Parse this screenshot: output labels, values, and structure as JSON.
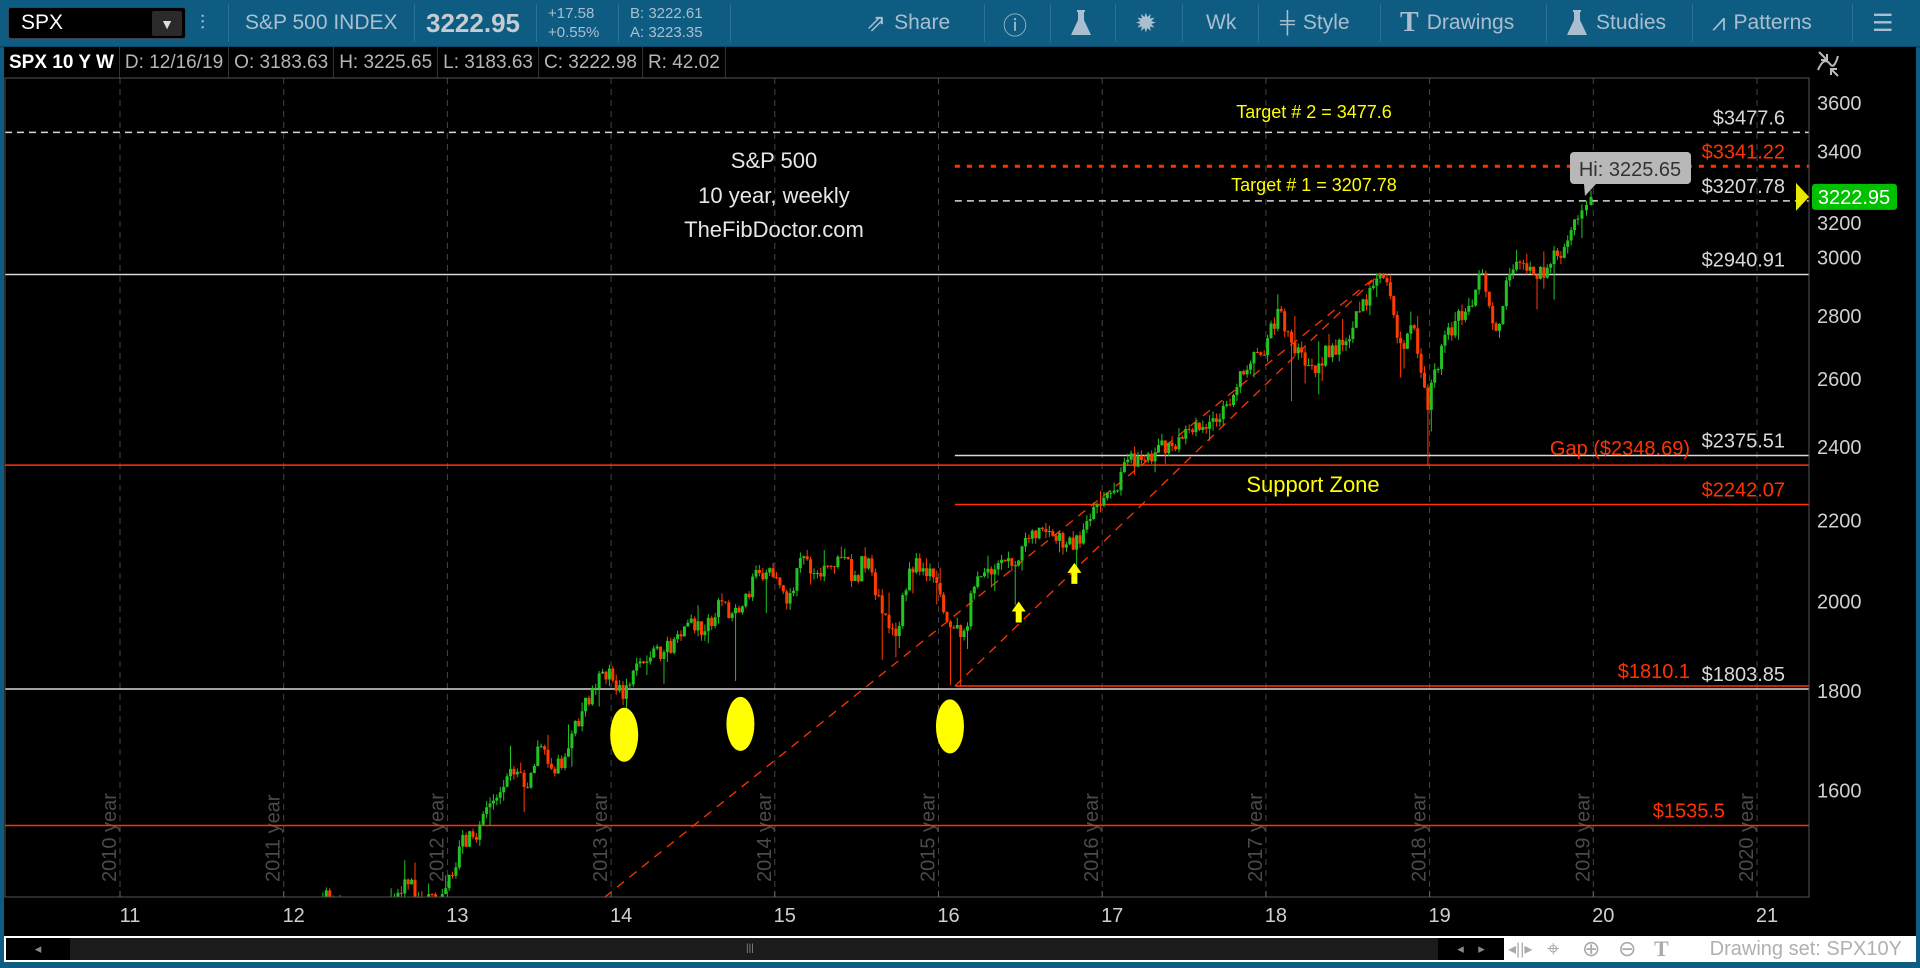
{
  "toolbar": {
    "symbol": "SPX",
    "name": "S&P 500 INDEX",
    "last": "3222.95",
    "change": "+17.58",
    "change_pct": "+0.55%",
    "bid": "B: 3222.61",
    "ask": "A: 3223.35",
    "share": "Share",
    "timeframe": "Wk",
    "style": "Style",
    "drawings": "Drawings",
    "studies": "Studies",
    "patterns": "Patterns"
  },
  "infobar": {
    "title": "SPX 10 Y W",
    "date": "D: 12/16/19",
    "open": "O: 3183.63",
    "high": "H: 3225.65",
    "low": "L: 3183.63",
    "close": "C: 3222.98",
    "range": "R: 42.02"
  },
  "annotations": {
    "title_lines": [
      "S&P 500",
      "10 year, weekly",
      "TheFibDoctor.com"
    ],
    "target2": "Target # 2 = 3477.6",
    "target1": "Target # 1 = 3207.78",
    "support_zone": "Support  Zone",
    "hi_bubble": "Hi: 3225.65",
    "price_tag": "3222.95"
  },
  "bottom": {
    "drawing_set": "Drawing set: SPX10Y"
  },
  "colors": {
    "toolbar": "#0f5c83",
    "up": "#22c222",
    "down": "#ff3c00",
    "level_red": "#ff3300",
    "level_white": "#d8d8d8",
    "annotation_yellow": "#ffff00",
    "price_tag": "#00c000"
  },
  "chart_data": {
    "type": "candlestick",
    "interval": "weekly",
    "scale": "log",
    "ylim": [
      1411,
      3700
    ],
    "y_ticks": [
      1600,
      1800,
      2000,
      2200,
      2400,
      2600,
      2800,
      3000,
      3200,
      3400,
      3600
    ],
    "x_ticks": [
      "11",
      "12",
      "13",
      "14",
      "15",
      "16",
      "17",
      "18",
      "19",
      "20",
      "21"
    ],
    "year_markers": [
      "2010 year",
      "2011 year",
      "2012 year",
      "2013 year",
      "2014 year",
      "2015 year",
      "2016 year",
      "2017 year",
      "2018 year",
      "2019 year",
      "2020 year"
    ],
    "monthly": [
      {
        "year": 2012,
        "close": [
          1312,
          1366,
          1408,
          1398,
          1310,
          1362,
          1379,
          1406,
          1441,
          1412,
          1416,
          1426
        ],
        "high": [
          1333,
          1378,
          1419,
          1422,
          1415,
          1363,
          1392,
          1426,
          1474,
          1470,
          1434,
          1448
        ],
        "low": [
          1258,
          1312,
          1340,
          1358,
          1291,
          1267,
          1325,
          1354,
          1396,
          1403,
          1343,
          1398
        ]
      },
      {
        "year": 2013,
        "close": [
          1498,
          1515,
          1569,
          1597,
          1631,
          1606,
          1686,
          1633,
          1682,
          1757,
          1806,
          1848
        ],
        "high": [
          1509,
          1530,
          1570,
          1597,
          1687,
          1654,
          1698,
          1709,
          1730,
          1775,
          1814,
          1849
        ],
        "low": [
          1426,
          1485,
          1501,
          1536,
          1581,
          1560,
          1604,
          1627,
          1633,
          1646,
          1746,
          1767
        ]
      },
      {
        "year": 2014,
        "close": [
          1783,
          1859,
          1872,
          1884,
          1924,
          1960,
          1931,
          2003,
          1972,
          2018,
          2068,
          2059
        ],
        "high": [
          1850,
          1867,
          1884,
          1897,
          1924,
          1968,
          1991,
          2006,
          2019,
          2018,
          2075,
          2093
        ],
        "low": [
          1770,
          1737,
          1834,
          1815,
          1862,
          1915,
          1930,
          1904,
          1964,
          1821,
          2001,
          1973
        ]
      },
      {
        "year": 2015,
        "close": [
          1995,
          2105,
          2068,
          2086,
          2107,
          2063,
          2104,
          1972,
          1920,
          2079,
          2080,
          2044
        ],
        "high": [
          2064,
          2119,
          2114,
          2125,
          2134,
          2129,
          2132,
          2113,
          2021,
          2094,
          2116,
          2104
        ],
        "low": [
          1981,
          1980,
          2040,
          2048,
          2067,
          2056,
          2044,
          1867,
          1872,
          1893,
          2019,
          1993
        ]
      },
      {
        "year": 2016,
        "close": [
          1940,
          1932,
          2060,
          2065,
          2097,
          2099,
          2174,
          2171,
          2168,
          2126,
          2199,
          2239
        ],
        "high": [
          2081,
          1962,
          2072,
          2111,
          2103,
          2120,
          2178,
          2194,
          2187,
          2169,
          2214,
          2278
        ],
        "low": [
          1812,
          1810,
          1891,
          2033,
          2025,
          1992,
          2074,
          2147,
          2119,
          2114,
          2084,
          2187
        ]
      },
      {
        "year": 2017,
        "close": [
          2279,
          2364,
          2363,
          2384,
          2412,
          2423,
          2470,
          2472,
          2519,
          2575,
          2648,
          2674
        ],
        "high": [
          2301,
          2371,
          2401,
          2398,
          2418,
          2454,
          2484,
          2491,
          2520,
          2582,
          2657,
          2695
        ],
        "low": [
          2245,
          2267,
          2322,
          2329,
          2352,
          2406,
          2407,
          2417,
          2446,
          2520,
          2557,
          2605
        ]
      },
      {
        "year": 2018,
        "close": [
          2824,
          2714,
          2641,
          2648,
          2705,
          2718,
          2816,
          2902,
          2914,
          2712,
          2760,
          2507
        ],
        "high": [
          2873,
          2789,
          2801,
          2718,
          2742,
          2791,
          2848,
          2917,
          2941,
          2940,
          2815,
          2800
        ],
        "low": [
          2682,
          2533,
          2586,
          2553,
          2594,
          2692,
          2698,
          2803,
          2864,
          2604,
          2632,
          2346
        ]
      },
      {
        "year": 2019,
        "close": [
          2704,
          2784,
          2834,
          2946,
          2752,
          2942,
          2980,
          2926,
          2977,
          3038,
          3141,
          3223
        ],
        "high": [
          2708,
          2813,
          2861,
          2949,
          2954,
          2964,
          3028,
          3014,
          3022,
          3050,
          3154,
          3226
        ],
        "low": [
          2444,
          2681,
          2723,
          2848,
          2750,
          2729,
          2952,
          2822,
          2892,
          2855,
          3050,
          3070
        ]
      }
    ],
    "levels": [
      {
        "value": 3477.6,
        "label": "$3477.6",
        "color": "#d8d8d8",
        "style": "dashed"
      },
      {
        "value": 3341.22,
        "label": "$3341.22",
        "color": "#ff3300",
        "style": "dotted"
      },
      {
        "value": 3207.78,
        "label": "$3207.78",
        "color": "#d8d8d8",
        "style": "dashed"
      },
      {
        "value": 2940.91,
        "label": "$2940.91",
        "color": "#d8d8d8",
        "style": "solid"
      },
      {
        "value": 2375.51,
        "label": "$2375.51",
        "color": "#d8d8d8",
        "style": "solid"
      },
      {
        "value": 2348.69,
        "label": "Gap ($2348.69)",
        "color": "#ff3300",
        "style": "solid"
      },
      {
        "value": 2242.07,
        "label": "$2242.07",
        "color": "#ff3300",
        "style": "solid"
      },
      {
        "value": 1810.1,
        "label": "$1810.1",
        "color": "#ff3300",
        "style": "solid"
      },
      {
        "value": 1803.85,
        "label": "$1803.85",
        "color": "#d8d8d8",
        "style": "solid"
      },
      {
        "value": 1535.5,
        "label": "$1535.5",
        "color": "#ff3300",
        "style": "solid"
      }
    ],
    "trendlines": [
      {
        "from": [
          2013.96,
          1411
        ],
        "to": [
          2018.7,
          2946
        ]
      },
      {
        "from": [
          2016.1,
          1810
        ],
        "to": [
          2018.7,
          2946
        ]
      }
    ],
    "highlight_ellipses": [
      [
        2014.08,
        1709
      ],
      [
        2014.79,
        1731
      ],
      [
        2016.07,
        1726
      ]
    ],
    "arrows": [
      [
        2016.49,
        2000
      ],
      [
        2016.83,
        2093
      ]
    ],
    "last_price": 3222.95,
    "high_marker": 3225.65
  }
}
